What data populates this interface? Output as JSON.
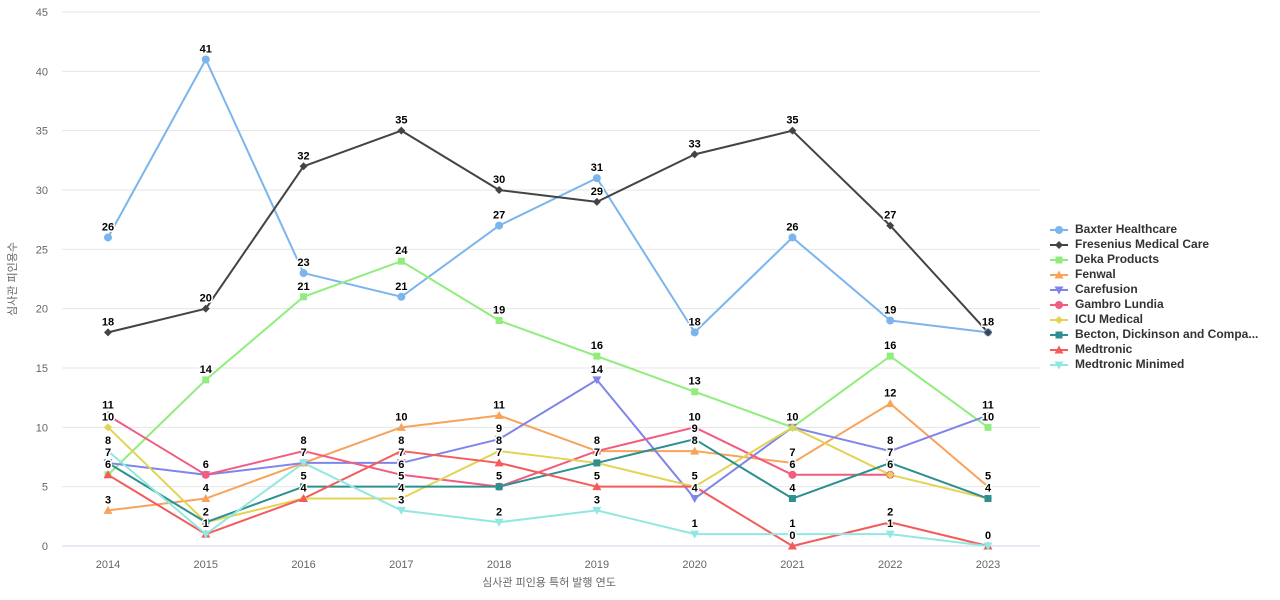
{
  "chart_data": {
    "type": "line",
    "title": "",
    "xlabel": "심사관 피인용 특허 발행 연도",
    "ylabel": "심사관 피인용수",
    "categories": [
      "2014",
      "2015",
      "2016",
      "2017",
      "2018",
      "2019",
      "2020",
      "2021",
      "2022",
      "2023"
    ],
    "y_ticks": [
      0,
      5,
      10,
      15,
      20,
      25,
      30,
      35,
      40,
      45
    ],
    "ylim": [
      0,
      45
    ],
    "grid": true,
    "legend_position": "right",
    "grid_color": "#e6e6e6",
    "axis_line_color": "#ccd6eb",
    "series": [
      {
        "name": "Baxter Healthcare",
        "color": "#7cb5ec",
        "symbol": "circle",
        "values": [
          26,
          41,
          23,
          21,
          27,
          31,
          18,
          26,
          19,
          18
        ]
      },
      {
        "name": "Fresenius Medical Care",
        "color": "#434348",
        "symbol": "diamond",
        "values": [
          18,
          20,
          32,
          35,
          30,
          29,
          33,
          35,
          27,
          18
        ]
      },
      {
        "name": "Deka Products",
        "color": "#90ed7d",
        "symbol": "square",
        "values": [
          6,
          14,
          21,
          24,
          19,
          16,
          13,
          10,
          16,
          10
        ]
      },
      {
        "name": "Fenwal",
        "color": "#f7a35c",
        "symbol": "triangle",
        "values": [
          3,
          4,
          7,
          10,
          11,
          8,
          8,
          7,
          12,
          5
        ]
      },
      {
        "name": "Carefusion",
        "color": "#8085e9",
        "symbol": "triangle-down",
        "values": [
          7,
          6,
          7,
          7,
          9,
          14,
          4,
          10,
          8,
          11
        ]
      },
      {
        "name": "Gambro Lundia",
        "color": "#f15c80",
        "symbol": "circle",
        "values": [
          11,
          6,
          8,
          6,
          5,
          8,
          10,
          6,
          6,
          null
        ]
      },
      {
        "name": "ICU Medical",
        "color": "#e4d354",
        "symbol": "diamond",
        "values": [
          10,
          2,
          4,
          4,
          8,
          7,
          5,
          10,
          6,
          4
        ]
      },
      {
        "name": "Becton, Dickinson and Compa...",
        "color": "#2b908f",
        "symbol": "square",
        "values": [
          7,
          2,
          5,
          5,
          5,
          7,
          9,
          4,
          7,
          4
        ]
      },
      {
        "name": "Medtronic",
        "color": "#f45b5b",
        "symbol": "triangle",
        "values": [
          6,
          1,
          4,
          8,
          7,
          5,
          5,
          0,
          2,
          0
        ]
      },
      {
        "name": "Medtronic Minimed",
        "color": "#91e8e1",
        "symbol": "triangle-down",
        "values": [
          8,
          1,
          7,
          3,
          2,
          3,
          1,
          1,
          1,
          0
        ]
      }
    ]
  }
}
